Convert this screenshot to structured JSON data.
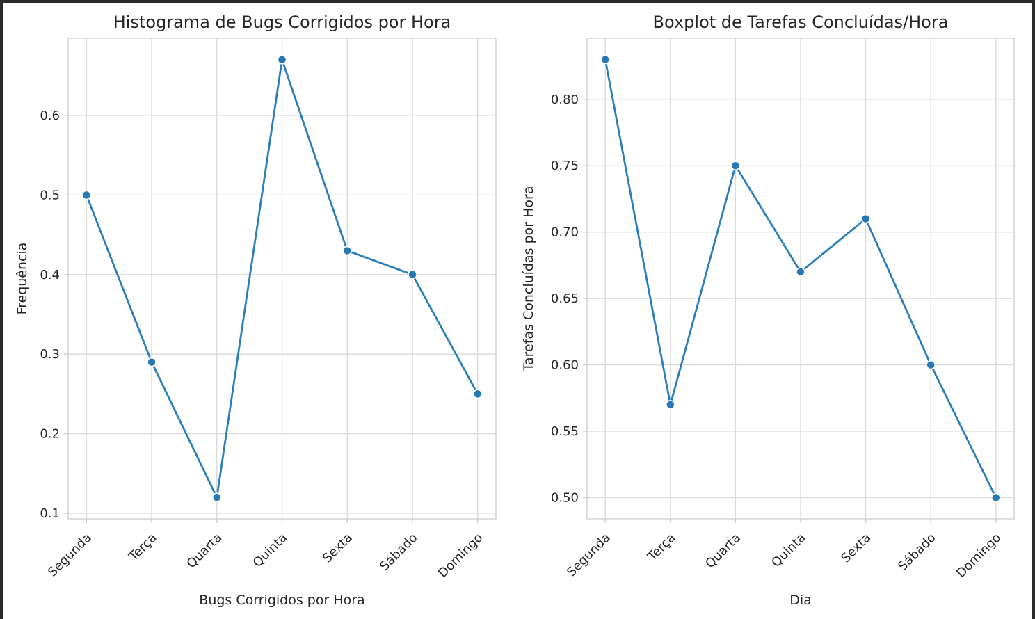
{
  "colors": {
    "line": "#2a7fba",
    "marker": "#2878b5",
    "grid": "#d9d9d9",
    "background": "#ffffff"
  },
  "chart_data": [
    {
      "type": "line",
      "title": "Histograma de Bugs Corrigidos por Hora",
      "xlabel": "Bugs Corrigidos por Hora",
      "ylabel": "Frequência",
      "categories": [
        "Segunda",
        "Terça",
        "Quarta",
        "Quinta",
        "Sexta",
        "Sábado",
        "Domingo"
      ],
      "values": [
        0.5,
        0.29,
        0.12,
        0.67,
        0.43,
        0.4,
        0.25
      ],
      "yticks": [
        0.1,
        0.2,
        0.3,
        0.4,
        0.5,
        0.6
      ],
      "ytick_labels": [
        "0.1",
        "0.2",
        "0.3",
        "0.4",
        "0.5",
        "0.6"
      ],
      "ylim": [
        0.093,
        0.697
      ],
      "grid": true,
      "marker": "circle"
    },
    {
      "type": "line",
      "title": "Boxplot de Tarefas Concluídas/Hora",
      "xlabel": "Dia",
      "ylabel": "Tarefas Concluídas por Hora",
      "categories": [
        "Segunda",
        "Terça",
        "Quarta",
        "Quinta",
        "Sexta",
        "Sábado",
        "Domingo"
      ],
      "values": [
        0.83,
        0.57,
        0.75,
        0.67,
        0.71,
        0.6,
        0.5
      ],
      "yticks": [
        0.5,
        0.55,
        0.6,
        0.65,
        0.7,
        0.75,
        0.8
      ],
      "ytick_labels": [
        "0.50",
        "0.55",
        "0.60",
        "0.65",
        "0.70",
        "0.75",
        "0.80"
      ],
      "ylim": [
        0.484,
        0.846
      ],
      "grid": true,
      "marker": "circle"
    }
  ]
}
